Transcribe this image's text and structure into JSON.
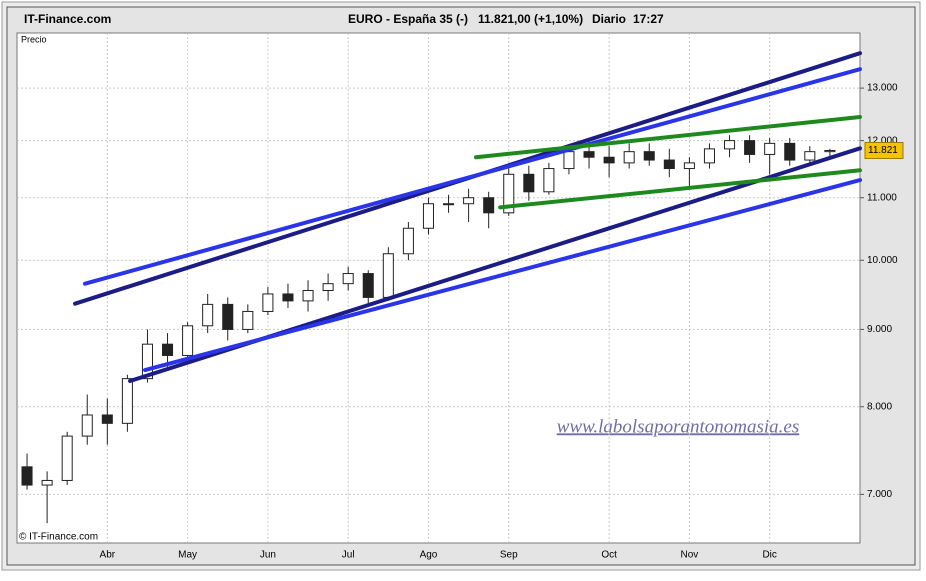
{
  "header": {
    "site": "IT-Finance.com",
    "instrument": "EURO - España 35 (-)",
    "quote": "11.821,00 (+1,10%)",
    "period": "Diario",
    "time": "17:27"
  },
  "chart_data": {
    "type": "candlestick",
    "y_label": "Precio",
    "copyright": "© IT-Finance.com",
    "watermark": "www.labolsaporantonomasia.es",
    "log_scale": true,
    "grid": true,
    "categories": [
      null,
      null,
      null,
      null,
      "Abr",
      null,
      null,
      null,
      "May",
      null,
      null,
      null,
      "Jun",
      null,
      null,
      null,
      "Jul",
      null,
      null,
      null,
      "Ago",
      null,
      null,
      null,
      "Sep",
      null,
      null,
      null,
      null,
      "Oct",
      null,
      null,
      null,
      "Nov",
      null,
      null,
      null,
      "Dic",
      null,
      null,
      null,
      null
    ],
    "open": [
      7300,
      7100,
      7150,
      7650,
      7900,
      7800,
      8350,
      8800,
      8650,
      9050,
      9350,
      9000,
      9250,
      9500,
      9400,
      9550,
      9650,
      9800,
      9450,
      10100,
      10500,
      10900,
      10900,
      11000,
      10750,
      11400,
      11100,
      11500,
      11800,
      11700,
      11600,
      11800,
      11650,
      11500,
      11600,
      11850,
      12000,
      11750,
      11950,
      11650,
      11800,
      null
    ],
    "high": [
      7450,
      7250,
      7700,
      8150,
      8100,
      8400,
      9000,
      8950,
      9100,
      9500,
      9450,
      9350,
      9600,
      9650,
      9700,
      9800,
      9900,
      9850,
      10200,
      10600,
      11000,
      11050,
      11150,
      11100,
      11500,
      11550,
      11600,
      11900,
      12000,
      11900,
      11950,
      11950,
      11850,
      11700,
      11950,
      12100,
      12100,
      12050,
      12050,
      11900,
      11850,
      null
    ],
    "low": [
      7050,
      6700,
      7100,
      7550,
      7550,
      7700,
      8300,
      8500,
      8600,
      8950,
      8850,
      8950,
      9200,
      9300,
      9250,
      9400,
      9550,
      9350,
      9400,
      10000,
      10400,
      10750,
      10600,
      10500,
      10700,
      10950,
      11050,
      11400,
      11500,
      11350,
      11500,
      11550,
      11350,
      11200,
      11500,
      11700,
      11600,
      11400,
      11550,
      11550,
      11650,
      null
    ],
    "close": [
      7100,
      7150,
      7650,
      7900,
      7800,
      8350,
      8800,
      8650,
      9050,
      9350,
      9000,
      9250,
      9500,
      9400,
      9550,
      9650,
      9800,
      9450,
      10100,
      10500,
      10900,
      10900,
      11000,
      10750,
      11400,
      11100,
      11500,
      11800,
      11700,
      11600,
      11800,
      11650,
      11500,
      11600,
      11850,
      12000,
      11750,
      11950,
      11650,
      11800,
      11821,
      null
    ],
    "ylim": [
      6500,
      13840
    ],
    "yticks": [
      {
        "value": 7000,
        "label": "7.000"
      },
      {
        "value": 8000,
        "label": "8.000"
      },
      {
        "value": 9000,
        "label": "9.000"
      },
      {
        "value": 10000,
        "label": "10.000"
      },
      {
        "value": 11000,
        "label": "11.000"
      },
      {
        "value": 12000,
        "label": "12.000"
      },
      {
        "value": 13000,
        "label": "13.000"
      }
    ],
    "last_price": {
      "value": 11821,
      "label": "11.821"
    },
    "trend_lines": [
      {
        "color": "#1c1c85",
        "x": [
          2.39,
          41.5
        ],
        "values": [
          9360,
          13710
        ]
      },
      {
        "color": "#2a35e8",
        "x": [
          2.89,
          41.5
        ],
        "values": [
          9650,
          13380
        ]
      },
      {
        "color": "#1c1c85",
        "x": [
          5.13,
          41.5
        ],
        "values": [
          8320,
          11860
        ]
      },
      {
        "color": "#2a35e8",
        "x": [
          5.88,
          41.5
        ],
        "values": [
          8460,
          11300
        ]
      },
      {
        "color": "#1e8a1e",
        "x": [
          22.37,
          41.5
        ],
        "values": [
          11700,
          12440
        ]
      },
      {
        "color": "#1e8a1e",
        "x": [
          23.57,
          41.5
        ],
        "values": [
          10840,
          11470
        ]
      }
    ]
  }
}
